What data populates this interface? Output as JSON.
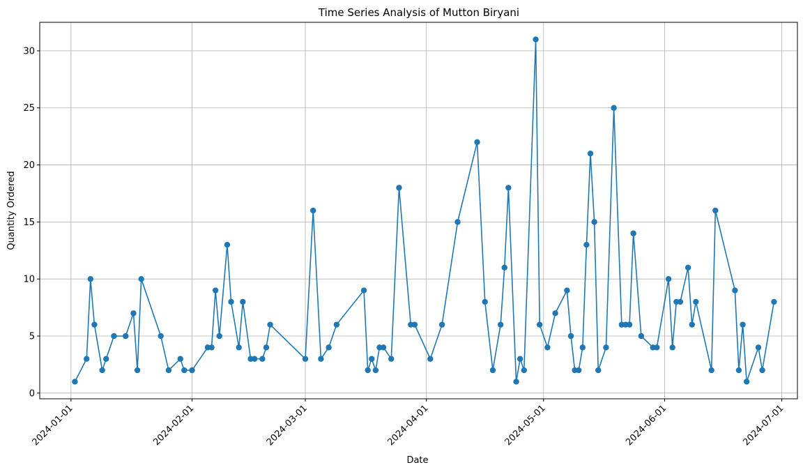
{
  "chart_data": {
    "type": "line",
    "title": "Time Series Analysis of Mutton Biryani",
    "xlabel": "Date",
    "ylabel": "Quantity Ordered",
    "xlim": [
      "2023-12-24",
      "2024-07-05"
    ],
    "ylim": [
      -0.5,
      32.5
    ],
    "x_ticks": [
      "2024-01-01",
      "2024-02-01",
      "2024-03-01",
      "2024-04-01",
      "2024-05-01",
      "2024-06-01",
      "2024-07-01"
    ],
    "y_ticks": [
      0,
      5,
      10,
      15,
      20,
      25,
      30
    ],
    "grid": true,
    "marker": "circle",
    "color": "#1f77b4",
    "series": [
      {
        "points": [
          [
            "2024-01-02",
            1
          ],
          [
            "2024-01-05",
            3
          ],
          [
            "2024-01-06",
            10
          ],
          [
            "2024-01-07",
            6
          ],
          [
            "2024-01-09",
            2
          ],
          [
            "2024-01-10",
            3
          ],
          [
            "2024-01-12",
            5
          ],
          [
            "2024-01-15",
            5
          ],
          [
            "2024-01-17",
            7
          ],
          [
            "2024-01-18",
            2
          ],
          [
            "2024-01-19",
            10
          ],
          [
            "2024-01-24",
            5
          ],
          [
            "2024-01-26",
            2
          ],
          [
            "2024-01-29",
            3
          ],
          [
            "2024-01-30",
            2
          ],
          [
            "2024-02-01",
            2
          ],
          [
            "2024-02-05",
            4
          ],
          [
            "2024-02-06",
            4
          ],
          [
            "2024-02-07",
            9
          ],
          [
            "2024-02-08",
            5
          ],
          [
            "2024-02-10",
            13
          ],
          [
            "2024-02-11",
            8
          ],
          [
            "2024-02-13",
            4
          ],
          [
            "2024-02-14",
            8
          ],
          [
            "2024-02-16",
            3
          ],
          [
            "2024-02-17",
            3
          ],
          [
            "2024-02-19",
            3
          ],
          [
            "2024-02-20",
            4
          ],
          [
            "2024-02-21",
            6
          ],
          [
            "2024-03-01",
            3
          ],
          [
            "2024-03-03",
            16
          ],
          [
            "2024-03-05",
            3
          ],
          [
            "2024-03-07",
            4
          ],
          [
            "2024-03-09",
            6
          ],
          [
            "2024-03-16",
            9
          ],
          [
            "2024-03-17",
            2
          ],
          [
            "2024-03-18",
            3
          ],
          [
            "2024-03-19",
            2
          ],
          [
            "2024-03-20",
            4
          ],
          [
            "2024-03-21",
            4
          ],
          [
            "2024-03-23",
            3
          ],
          [
            "2024-03-25",
            18
          ],
          [
            "2024-03-28",
            6
          ],
          [
            "2024-03-29",
            6
          ],
          [
            "2024-04-02",
            3
          ],
          [
            "2024-04-05",
            6
          ],
          [
            "2024-04-09",
            15
          ],
          [
            "2024-04-14",
            22
          ],
          [
            "2024-04-16",
            8
          ],
          [
            "2024-04-18",
            2
          ],
          [
            "2024-04-20",
            6
          ],
          [
            "2024-04-21",
            11
          ],
          [
            "2024-04-22",
            18
          ],
          [
            "2024-04-24",
            1
          ],
          [
            "2024-04-25",
            3
          ],
          [
            "2024-04-26",
            2
          ],
          [
            "2024-04-29",
            31
          ],
          [
            "2024-04-30",
            6
          ],
          [
            "2024-05-02",
            4
          ],
          [
            "2024-05-04",
            7
          ],
          [
            "2024-05-07",
            9
          ],
          [
            "2024-05-08",
            5
          ],
          [
            "2024-05-09",
            2
          ],
          [
            "2024-05-10",
            2
          ],
          [
            "2024-05-11",
            4
          ],
          [
            "2024-05-12",
            13
          ],
          [
            "2024-05-13",
            21
          ],
          [
            "2024-05-14",
            15
          ],
          [
            "2024-05-15",
            2
          ],
          [
            "2024-05-17",
            4
          ],
          [
            "2024-05-19",
            25
          ],
          [
            "2024-05-21",
            6
          ],
          [
            "2024-05-22",
            6
          ],
          [
            "2024-05-23",
            6
          ],
          [
            "2024-05-24",
            14
          ],
          [
            "2024-05-26",
            5
          ],
          [
            "2024-05-29",
            4
          ],
          [
            "2024-05-30",
            4
          ],
          [
            "2024-06-02",
            10
          ],
          [
            "2024-06-03",
            4
          ],
          [
            "2024-06-04",
            8
          ],
          [
            "2024-06-05",
            8
          ],
          [
            "2024-06-07",
            11
          ],
          [
            "2024-06-08",
            6
          ],
          [
            "2024-06-09",
            8
          ],
          [
            "2024-06-13",
            2
          ],
          [
            "2024-06-14",
            16
          ],
          [
            "2024-06-19",
            9
          ],
          [
            "2024-06-20",
            2
          ],
          [
            "2024-06-21",
            6
          ],
          [
            "2024-06-22",
            1
          ],
          [
            "2024-06-25",
            4
          ],
          [
            "2024-06-26",
            2
          ],
          [
            "2024-06-29",
            8
          ]
        ]
      }
    ]
  }
}
